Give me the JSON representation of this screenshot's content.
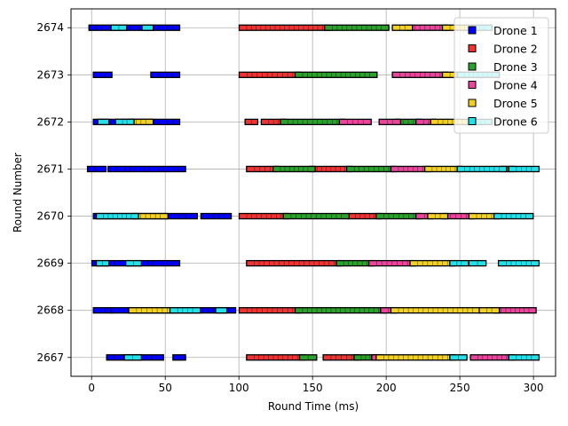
{
  "chart_data": {
    "type": "scatter",
    "xlabel": "Round Time (ms)",
    "ylabel": "Round Number",
    "xlim": [
      -14,
      315
    ],
    "ylim": [
      2666.6,
      2674.4
    ],
    "xticks": [
      0,
      50,
      100,
      150,
      200,
      250,
      300
    ],
    "yticks": [
      2667,
      2668,
      2669,
      2670,
      2671,
      2672,
      2673,
      2674
    ],
    "grid": true,
    "legend_position": "top-right",
    "series": [
      {
        "name": "Drone 1",
        "color": "#0000ff",
        "segments": [
          {
            "round": 2674,
            "start": 0,
            "end": 58
          },
          {
            "round": 2673,
            "start": 3,
            "end": 12
          },
          {
            "round": 2673,
            "start": 42,
            "end": 58
          },
          {
            "round": 2672,
            "start": 3,
            "end": 58
          },
          {
            "round": 2671,
            "start": -1,
            "end": 8
          },
          {
            "round": 2671,
            "start": 13,
            "end": 62
          },
          {
            "round": 2670,
            "start": 3,
            "end": 70
          },
          {
            "round": 2670,
            "start": 76,
            "end": 93
          },
          {
            "round": 2669,
            "start": 2,
            "end": 58
          },
          {
            "round": 2668,
            "start": 3,
            "end": 12
          },
          {
            "round": 2668,
            "start": 15,
            "end": 96
          },
          {
            "round": 2667,
            "start": 12,
            "end": 47
          },
          {
            "round": 2667,
            "start": 57,
            "end": 62
          }
        ]
      },
      {
        "name": "Drone 2",
        "color": "#ee3333",
        "segments": [
          {
            "round": 2674,
            "start": 102,
            "end": 160
          },
          {
            "round": 2673,
            "start": 102,
            "end": 140
          },
          {
            "round": 2672,
            "start": 106,
            "end": 111
          },
          {
            "round": 2672,
            "start": 117,
            "end": 130
          },
          {
            "round": 2671,
            "start": 107,
            "end": 125
          },
          {
            "round": 2671,
            "start": 150,
            "end": 175
          },
          {
            "round": 2670,
            "start": 102,
            "end": 132
          },
          {
            "round": 2670,
            "start": 176,
            "end": 195
          },
          {
            "round": 2669,
            "start": 107,
            "end": 168
          },
          {
            "round": 2668,
            "start": 102,
            "end": 140
          },
          {
            "round": 2667,
            "start": 107,
            "end": 143
          },
          {
            "round": 2667,
            "start": 159,
            "end": 180
          }
        ]
      },
      {
        "name": "Drone 3",
        "color": "#2ca02c",
        "segments": [
          {
            "round": 2674,
            "start": 160,
            "end": 200
          },
          {
            "round": 2673,
            "start": 140,
            "end": 192
          },
          {
            "round": 2672,
            "start": 130,
            "end": 170
          },
          {
            "round": 2672,
            "start": 208,
            "end": 222
          },
          {
            "round": 2671,
            "start": 125,
            "end": 150
          },
          {
            "round": 2671,
            "start": 175,
            "end": 205
          },
          {
            "round": 2670,
            "start": 132,
            "end": 173
          },
          {
            "round": 2670,
            "start": 195,
            "end": 222
          },
          {
            "round": 2669,
            "start": 168,
            "end": 190
          },
          {
            "round": 2668,
            "start": 140,
            "end": 198
          },
          {
            "round": 2667,
            "start": 143,
            "end": 151
          },
          {
            "round": 2667,
            "start": 180,
            "end": 192
          }
        ]
      },
      {
        "name": "Drone 4",
        "color": "#e8459b",
        "segments": [
          {
            "round": 2674,
            "start": 216,
            "end": 240
          },
          {
            "round": 2673,
            "start": 206,
            "end": 240
          },
          {
            "round": 2672,
            "start": 170,
            "end": 188
          },
          {
            "round": 2672,
            "start": 197,
            "end": 208
          },
          {
            "round": 2672,
            "start": 222,
            "end": 232
          },
          {
            "round": 2671,
            "start": 205,
            "end": 228
          },
          {
            "round": 2670,
            "start": 222,
            "end": 230
          },
          {
            "round": 2670,
            "start": 240,
            "end": 258
          },
          {
            "round": 2669,
            "start": 190,
            "end": 218
          },
          {
            "round": 2668,
            "start": 198,
            "end": 205
          },
          {
            "round": 2668,
            "start": 275,
            "end": 300
          },
          {
            "round": 2667,
            "start": 192,
            "end": 195
          },
          {
            "round": 2667,
            "start": 259,
            "end": 285
          }
        ]
      },
      {
        "name": "Drone 5",
        "color": "#f2d024",
        "segments": [
          {
            "round": 2674,
            "start": 206,
            "end": 216
          },
          {
            "round": 2674,
            "start": 240,
            "end": 260
          },
          {
            "round": 2673,
            "start": 240,
            "end": 250
          },
          {
            "round": 2672,
            "start": 27,
            "end": 40
          },
          {
            "round": 2672,
            "start": 232,
            "end": 258
          },
          {
            "round": 2671,
            "start": 228,
            "end": 250
          },
          {
            "round": 2671,
            "start": 280,
            "end": 285
          },
          {
            "round": 2670,
            "start": 30,
            "end": 50
          },
          {
            "round": 2670,
            "start": 230,
            "end": 240
          },
          {
            "round": 2670,
            "start": 258,
            "end": 275
          },
          {
            "round": 2669,
            "start": 218,
            "end": 245
          },
          {
            "round": 2668,
            "start": 27,
            "end": 55
          },
          {
            "round": 2668,
            "start": 205,
            "end": 262
          },
          {
            "round": 2668,
            "start": 265,
            "end": 275
          },
          {
            "round": 2667,
            "start": 195,
            "end": 245
          }
        ]
      },
      {
        "name": "Drone 6",
        "color": "#24e0e8",
        "segments": [
          {
            "round": 2674,
            "start": 15,
            "end": 22
          },
          {
            "round": 2674,
            "start": 36,
            "end": 40
          },
          {
            "round": 2674,
            "start": 260,
            "end": 270
          },
          {
            "round": 2673,
            "start": 250,
            "end": 275
          },
          {
            "round": 2672,
            "start": 6,
            "end": 10
          },
          {
            "round": 2672,
            "start": 18,
            "end": 27
          },
          {
            "round": 2672,
            "start": 258,
            "end": 270
          },
          {
            "round": 2671,
            "start": 250,
            "end": 280
          },
          {
            "round": 2671,
            "start": 285,
            "end": 302
          },
          {
            "round": 2670,
            "start": 5,
            "end": 30
          },
          {
            "round": 2670,
            "start": 275,
            "end": 298
          },
          {
            "round": 2669,
            "start": 5,
            "end": 10
          },
          {
            "round": 2669,
            "start": 25,
            "end": 32
          },
          {
            "round": 2669,
            "start": 245,
            "end": 254
          },
          {
            "round": 2669,
            "start": 258,
            "end": 266
          },
          {
            "round": 2669,
            "start": 278,
            "end": 302
          },
          {
            "round": 2668,
            "start": 55,
            "end": 72
          },
          {
            "round": 2668,
            "start": 86,
            "end": 90
          },
          {
            "round": 2667,
            "start": 24,
            "end": 32
          },
          {
            "round": 2667,
            "start": 245,
            "end": 253
          },
          {
            "round": 2667,
            "start": 285,
            "end": 302
          }
        ]
      }
    ]
  }
}
